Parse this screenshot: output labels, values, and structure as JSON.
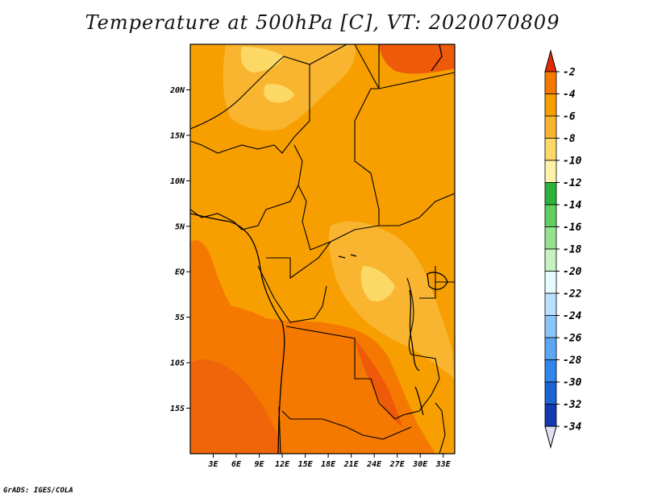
{
  "title": "Temperature at 500hPa [C], VT: 2020070809",
  "credit": "GrADS: IGES/COLA",
  "map": {
    "lon_range": [
      0,
      34.5
    ],
    "lat_range": [
      -20,
      25
    ],
    "lat_ticks": [
      {
        "value": 20,
        "label": "20N"
      },
      {
        "value": 15,
        "label": "15N"
      },
      {
        "value": 10,
        "label": "10N"
      },
      {
        "value": 5,
        "label": "5N"
      },
      {
        "value": 0,
        "label": "EQ"
      },
      {
        "value": -5,
        "label": "5S"
      },
      {
        "value": -10,
        "label": "10S"
      },
      {
        "value": -15,
        "label": "15S"
      }
    ],
    "lon_ticks": [
      {
        "value": 3,
        "label": "3E"
      },
      {
        "value": 6,
        "label": "6E"
      },
      {
        "value": 9,
        "label": "9E"
      },
      {
        "value": 12,
        "label": "12E"
      },
      {
        "value": 15,
        "label": "15E"
      },
      {
        "value": 18,
        "label": "18E"
      },
      {
        "value": 21,
        "label": "21E"
      },
      {
        "value": 24,
        "label": "24E"
      },
      {
        "value": 27,
        "label": "27E"
      },
      {
        "value": 30,
        "label": "30E"
      },
      {
        "value": 33,
        "label": "33E"
      }
    ]
  },
  "colorbar": {
    "levels": [
      "-2",
      "-4",
      "-6",
      "-8",
      "-10",
      "-12",
      "-14",
      "-16",
      "-18",
      "-20",
      "-22",
      "-24",
      "-26",
      "-28",
      "-30",
      "-32",
      "-34"
    ],
    "colors": [
      "#e8450c",
      "#f57800",
      "#f79f00",
      "#f9b530",
      "#fcd966",
      "#fdf2a8",
      "#2fb23b",
      "#5fcf5f",
      "#95e28f",
      "#c6f1c0",
      "#e7fbff",
      "#b9e1ff",
      "#8ac5fb",
      "#5ca7f4",
      "#3186ec",
      "#1c63d6",
      "#1538b3"
    ],
    "top_arrow_color": "#e02a08",
    "bottom_arrow_color": "#e0e0f5"
  }
}
